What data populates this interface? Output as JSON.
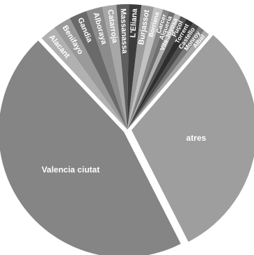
{
  "chart_data": {
    "type": "pie",
    "title": "",
    "start_angle_deg": 63,
    "slices": [
      {
        "label": "Valencia ciutat",
        "value": 45.5,
        "color": "#858585",
        "exploded": true
      },
      {
        "label": "Alacant",
        "value": 2.1,
        "color": "#b1b1b1"
      },
      {
        "label": "Benifayo",
        "value": 2.3,
        "color": "#9a9a9a"
      },
      {
        "label": "Gandia",
        "value": 2.3,
        "color": "#6a6a6a"
      },
      {
        "label": "Alboraya",
        "value": 2.1,
        "color": "#8c8c8c"
      },
      {
        "label": "Catarroja",
        "value": 1.8,
        "color": "#a7a7a7"
      },
      {
        "label": "Massanassa",
        "value": 1.6,
        "color": "#5e5e5e"
      },
      {
        "label": "L'Eliana",
        "value": 1.6,
        "color": "#3c3c3c"
      },
      {
        "label": "Burjassot",
        "value": 1.6,
        "color": "#9c9c9c"
      },
      {
        "label": "Borriana",
        "value": 1.2,
        "color": "#c2c2c2"
      },
      {
        "label": "Carcer",
        "value": 0.8,
        "color": "#878787"
      },
      {
        "label": "Alqueria",
        "value": 0.8,
        "color": "#6f6f6f"
      },
      {
        "label": "Vila-Joyosa",
        "value": 0.8,
        "color": "#b3b3b3"
      },
      {
        "label": "Puçol",
        "value": 0.8,
        "color": "#555555"
      },
      {
        "label": "Torrent",
        "value": 1.0,
        "color": "#2e2e2e"
      },
      {
        "label": "Castello",
        "value": 0.9,
        "color": "#4d4d4d"
      },
      {
        "label": "Monroy",
        "value": 0.8,
        "color": "#7a7a7a"
      },
      {
        "label": "Albal",
        "value": 0.8,
        "color": "#a8a8a8"
      },
      {
        "label": "atres",
        "value": 31.2,
        "color": "#9e9e9e",
        "exploded": true
      }
    ]
  }
}
